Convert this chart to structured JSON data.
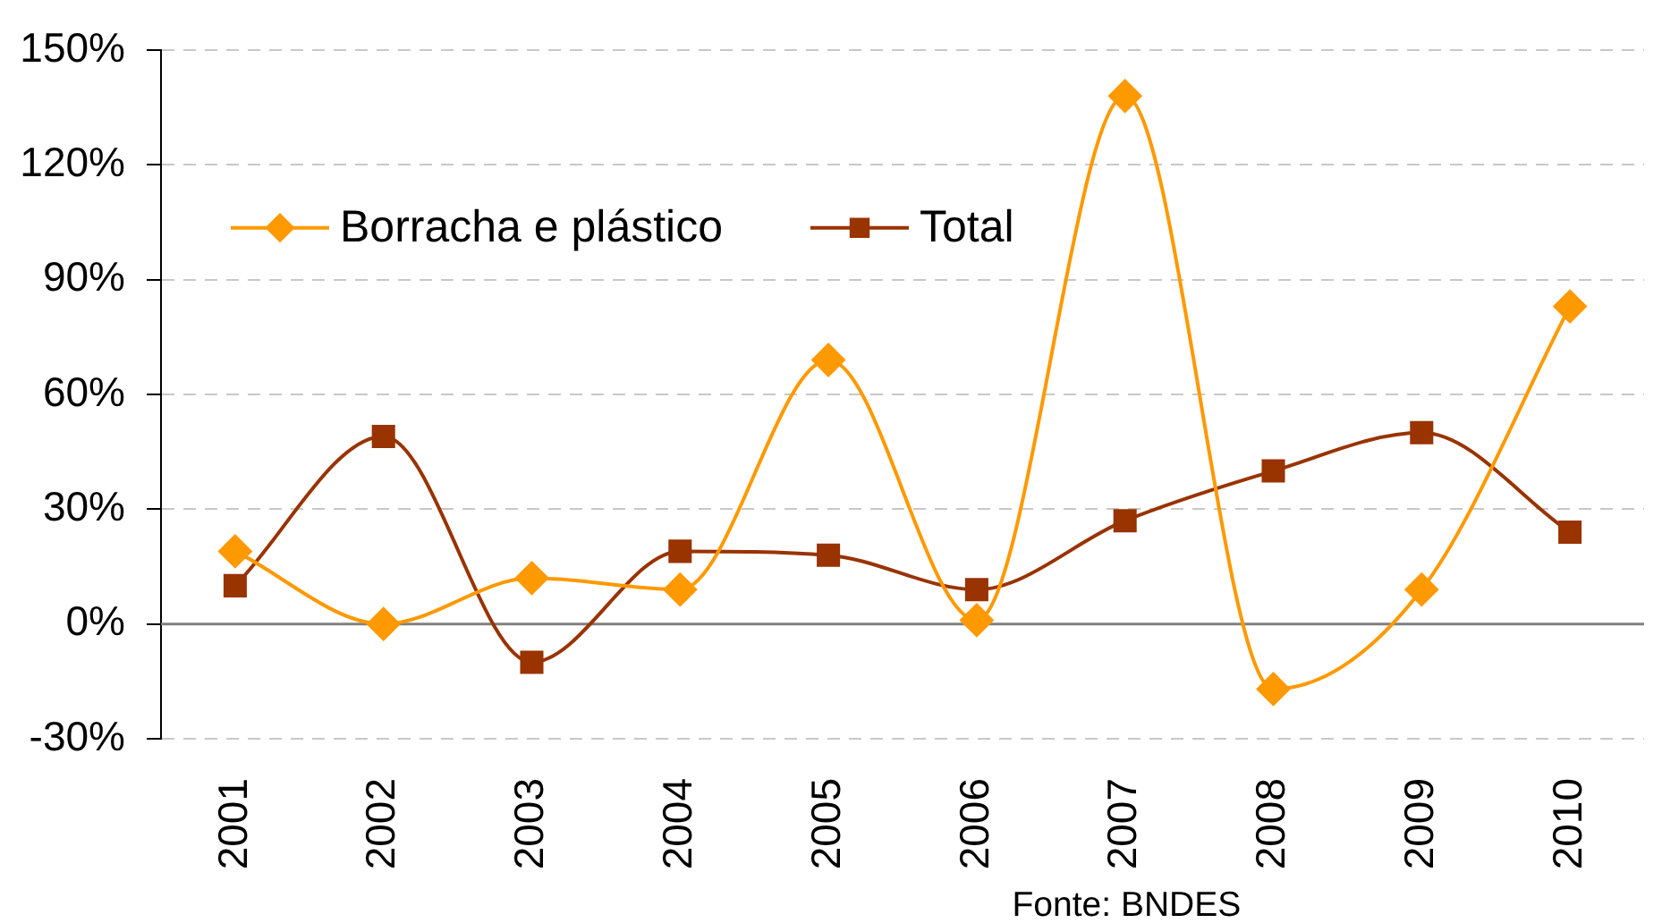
{
  "chart_data": {
    "type": "line",
    "categories": [
      "2001",
      "2002",
      "2003",
      "2004",
      "2005",
      "2006",
      "2007",
      "2008",
      "2009",
      "2010"
    ],
    "series": [
      {
        "name": "Borracha e plástico",
        "color": "#ff9900",
        "marker": "diamond",
        "values": [
          19,
          0,
          12,
          9,
          69,
          1,
          138,
          -17,
          9,
          83
        ]
      },
      {
        "name": "Total",
        "color": "#993300",
        "marker": "square",
        "values": [
          10,
          49,
          -10,
          19,
          18,
          9,
          27,
          40,
          50,
          24
        ]
      }
    ],
    "ylim": [
      -30,
      150
    ],
    "yticks": [
      {
        "value": -30,
        "label": "-30%"
      },
      {
        "value": 0,
        "label": "0%"
      },
      {
        "value": 30,
        "label": "30%"
      },
      {
        "value": 60,
        "label": "60%"
      },
      {
        "value": 90,
        "label": "90%"
      },
      {
        "value": 120,
        "label": "120%"
      },
      {
        "value": 150,
        "label": "150%"
      }
    ],
    "grid": "y",
    "legend": "top left",
    "line_style": "solid",
    "annotations": [
      "Fonte: BNDES"
    ]
  }
}
